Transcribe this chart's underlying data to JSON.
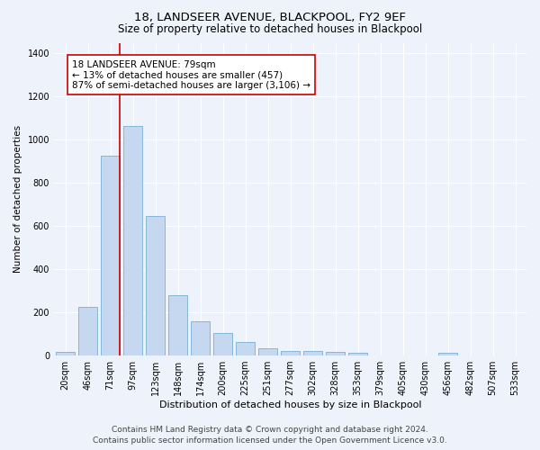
{
  "title": "18, LANDSEER AVENUE, BLACKPOOL, FY2 9EF",
  "subtitle": "Size of property relative to detached houses in Blackpool",
  "xlabel": "Distribution of detached houses by size in Blackpool",
  "ylabel": "Number of detached properties",
  "bar_labels": [
    "20sqm",
    "46sqm",
    "71sqm",
    "97sqm",
    "123sqm",
    "148sqm",
    "174sqm",
    "200sqm",
    "225sqm",
    "251sqm",
    "277sqm",
    "302sqm",
    "328sqm",
    "353sqm",
    "379sqm",
    "405sqm",
    "430sqm",
    "456sqm",
    "482sqm",
    "507sqm",
    "533sqm"
  ],
  "bar_values": [
    15,
    225,
    925,
    1065,
    645,
    280,
    160,
    105,
    65,
    35,
    20,
    20,
    15,
    12,
    0,
    0,
    0,
    12,
    0,
    0,
    0
  ],
  "bar_color": "#c5d8f0",
  "bar_edge_color": "#7aafd4",
  "vline_color": "#cc0000",
  "annotation_text": "18 LANDSEER AVENUE: 79sqm\n← 13% of detached houses are smaller (457)\n87% of semi-detached houses are larger (3,106) →",
  "annotation_box_color": "#ffffff",
  "annotation_box_edge_color": "#cc0000",
  "ylim": [
    0,
    1450
  ],
  "yticks": [
    0,
    200,
    400,
    600,
    800,
    1000,
    1200,
    1400
  ],
  "footer_line1": "Contains HM Land Registry data © Crown copyright and database right 2024.",
  "footer_line2": "Contains public sector information licensed under the Open Government Licence v3.0.",
  "bg_color": "#eef2fa",
  "plot_bg_color": "#eef2fa",
  "grid_color": "#ffffff",
  "title_fontsize": 9.5,
  "subtitle_fontsize": 8.5,
  "xlabel_fontsize": 8,
  "ylabel_fontsize": 7.5,
  "tick_fontsize": 7,
  "annotation_fontsize": 7.5,
  "footer_fontsize": 6.5
}
